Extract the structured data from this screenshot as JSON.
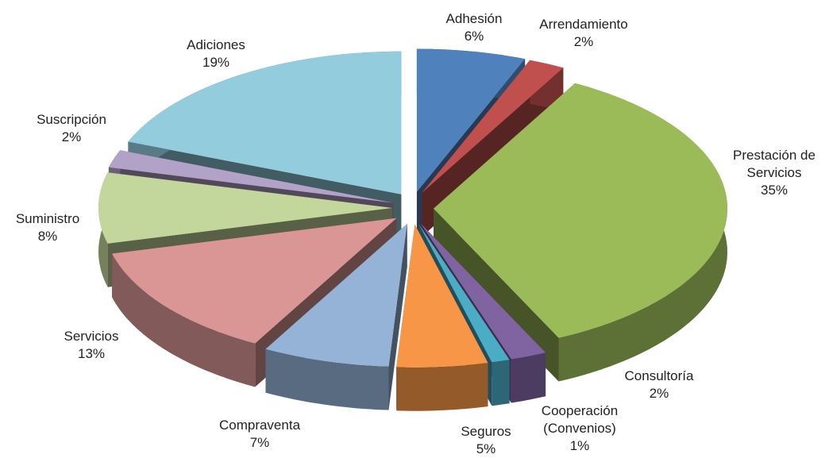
{
  "chart_data": {
    "type": "pie",
    "categories": [
      "Adhesión",
      "Arrendamiento",
      "Prestación de Servicios",
      "Consultoría",
      "Cooperación (Convenios)",
      "Seguros",
      "Compraventa",
      "Servicios",
      "Suministro",
      "Suscripción",
      "Adiciones"
    ],
    "values": [
      6,
      2,
      35,
      2,
      1,
      5,
      7,
      13,
      8,
      2,
      19
    ],
    "value_labels": [
      "6%",
      "2%",
      "35%",
      "2%",
      "1%",
      "5%",
      "7%",
      "13%",
      "8%",
      "2%",
      "19%"
    ],
    "colors": [
      "#4f81bd",
      "#c0504d",
      "#9bbb59",
      "#8064a2",
      "#4bacc6",
      "#f79646",
      "#95b3d7",
      "#d99694",
      "#c3d69b",
      "#b3a2c7",
      "#93cddd"
    ]
  }
}
